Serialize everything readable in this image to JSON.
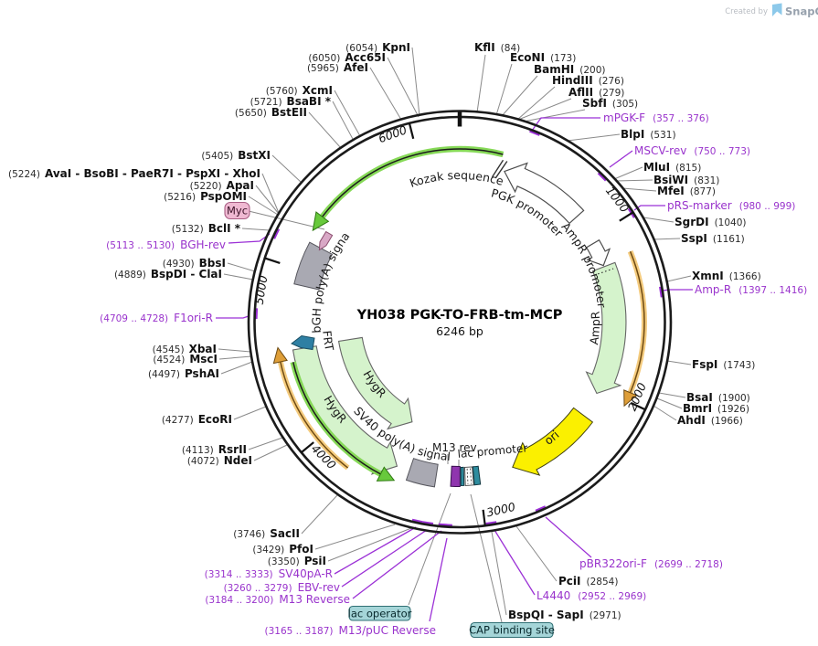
{
  "watermark": {
    "created_by": "Created by",
    "brand": "SnapGene"
  },
  "plasmid": {
    "title": "YH038 PGK-TO-FRB-tm-MCP",
    "length": "6246 bp"
  },
  "ring_ticks": [
    "1000",
    "2000",
    "3000",
    "4000",
    "5000",
    "6000"
  ],
  "features": {
    "kozak": "Kozak sequence",
    "pgk_promoter": "PGK promoter",
    "ampr_promoter": "AmpR promoter",
    "ampr": "AmpR",
    "ori": "ori",
    "hygr_outer": "HygR",
    "hygr_inner": "HygR",
    "sv40_polya": "SV40 poly(A) signal",
    "bgh_polya": "bGH poly(A) signal",
    "frt": "FRT",
    "m13_rev": "M13 rev",
    "lac_promoter": "lac promoter",
    "lac_operator": "lac operator",
    "cap_binding_site": "CAP binding site",
    "myc": "Myc"
  },
  "enzymes": [
    {
      "name": "KpnI",
      "pos": "(6054)"
    },
    {
      "name": "Acc65I",
      "pos": "(6050)"
    },
    {
      "name": "AfeI",
      "pos": "(5965)"
    },
    {
      "name": "XcmI",
      "pos": "(5760)"
    },
    {
      "name": "BsaBI *",
      "pos": "(5721)"
    },
    {
      "name": "BstEII",
      "pos": "(5650)"
    },
    {
      "name": "BstXI",
      "pos": "(5405)"
    },
    {
      "name": "AvaI - BsoBI - PaeR7I - PspXI - XhoI",
      "pos": "(5224)"
    },
    {
      "name": "ApaI",
      "pos": "(5220)"
    },
    {
      "name": "PspOMI",
      "pos": "(5216)"
    },
    {
      "name": "BclI *",
      "pos": "(5132)"
    },
    {
      "name": "BbsI",
      "pos": "(4930)"
    },
    {
      "name": "BspDI - ClaI",
      "pos": "(4889)"
    },
    {
      "name": "XbaI",
      "pos": "(4545)"
    },
    {
      "name": "MscI",
      "pos": "(4524)"
    },
    {
      "name": "PshAI",
      "pos": "(4497)"
    },
    {
      "name": "EcoRI",
      "pos": "(4277)"
    },
    {
      "name": "RsrII",
      "pos": "(4113)"
    },
    {
      "name": "NdeI",
      "pos": "(4072)"
    },
    {
      "name": "SacII",
      "pos": "(3746)"
    },
    {
      "name": "PfoI",
      "pos": "(3429)"
    },
    {
      "name": "PsiI",
      "pos": "(3350)"
    },
    {
      "name": "KflI",
      "pos": "(84)"
    },
    {
      "name": "EcoNI",
      "pos": "(173)"
    },
    {
      "name": "BamHI",
      "pos": "(200)"
    },
    {
      "name": "HindIII",
      "pos": "(276)"
    },
    {
      "name": "AflII",
      "pos": "(279)"
    },
    {
      "name": "SbfI",
      "pos": "(305)"
    },
    {
      "name": "BlpI",
      "pos": "(531)"
    },
    {
      "name": "MluI",
      "pos": "(815)"
    },
    {
      "name": "BsiWI",
      "pos": "(831)"
    },
    {
      "name": "MfeI",
      "pos": "(877)"
    },
    {
      "name": "SgrDI",
      "pos": "(1040)"
    },
    {
      "name": "SspI",
      "pos": "(1161)"
    },
    {
      "name": "XmnI",
      "pos": "(1366)"
    },
    {
      "name": "FspI",
      "pos": "(1743)"
    },
    {
      "name": "BsaI",
      "pos": "(1900)"
    },
    {
      "name": "BmrI",
      "pos": "(1926)"
    },
    {
      "name": "AhdI",
      "pos": "(1966)"
    },
    {
      "name": "PciI",
      "pos": "(2854)"
    },
    {
      "name": "BspQI - SapI",
      "pos": "(2971)"
    }
  ],
  "primers": [
    {
      "name": "mPGK-F",
      "range": "(357 .. 376)"
    },
    {
      "name": "MSCV-rev",
      "range": "(750 .. 773)"
    },
    {
      "name": "pRS-marker",
      "range": "(980 .. 999)"
    },
    {
      "name": "Amp-R",
      "range": "(1397 .. 1416)"
    },
    {
      "name": "pBR322ori-F",
      "range": "(2699 .. 2718)"
    },
    {
      "name": "L4440",
      "range": "(2952 .. 2969)"
    },
    {
      "name": "M13/pUC Reverse",
      "range": "(3165 .. 3187)"
    },
    {
      "name": "M13 Reverse",
      "range": "(3184 .. 3200)"
    },
    {
      "name": "EBV-rev",
      "range": "(3260 .. 3279)"
    },
    {
      "name": "SV40pA-R",
      "range": "(3314 .. 3333)"
    },
    {
      "name": "F1ori-R",
      "range": "(4709 .. 4728)"
    },
    {
      "name": "BGH-rev",
      "range": "(5113 .. 5130)"
    }
  ],
  "palette": {
    "backbone": "#1b1b1b",
    "cds_green": "#D5F3CC",
    "transcript_green": "#86D957",
    "transcript_head": "#68C93C",
    "orange_light": "#F4CB7E",
    "orange_dark": "#6E4A12",
    "orange_head": "#DE9E38",
    "ori_yellow": "#FBF000",
    "gray_feature": "#A9A9B2",
    "purple_primer": "#9B30D6",
    "m13_purple": "#8F35AE",
    "teal_site": "#2E8C9E",
    "teal_label_bg": "#A5D5D8",
    "pink_tag_bg": "#EFB9D2",
    "pink_tag_arrow": "#D9A8C6",
    "frt_blue": "#2E7FA3",
    "leader_gray": "#8a8a8a"
  }
}
